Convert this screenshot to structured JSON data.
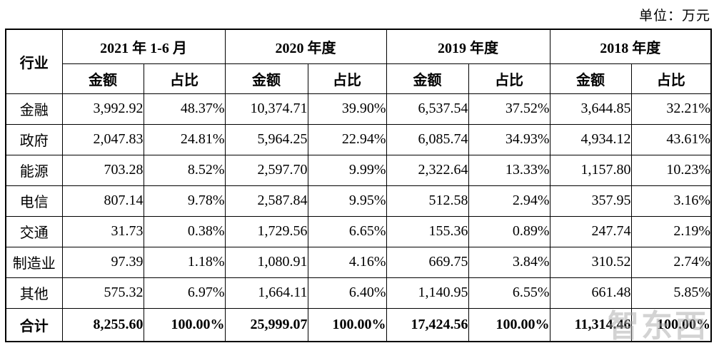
{
  "page": {
    "unit_label": "单位：万元",
    "watermark": "智东西"
  },
  "colors": {
    "background": "#ffffff",
    "text": "#000000",
    "border": "#000000",
    "watermark": "#a9a9a9"
  },
  "table": {
    "corner_header": "行业",
    "period_headers": [
      "2021 年 1-6 月",
      "2020 年度",
      "2019 年度",
      "2018 年度"
    ],
    "sub_headers": {
      "amount": "金额",
      "ratio": "占比"
    },
    "rows": [
      {
        "industry": "金融",
        "cells": [
          "3,992.92",
          "48.37%",
          "10,374.71",
          "39.90%",
          "6,537.54",
          "37.52%",
          "3,644.85",
          "32.21%"
        ]
      },
      {
        "industry": "政府",
        "cells": [
          "2,047.83",
          "24.81%",
          "5,964.25",
          "22.94%",
          "6,085.74",
          "34.93%",
          "4,934.12",
          "43.61%"
        ]
      },
      {
        "industry": "能源",
        "cells": [
          "703.28",
          "8.52%",
          "2,597.70",
          "9.99%",
          "2,322.64",
          "13.33%",
          "1,157.80",
          "10.23%"
        ]
      },
      {
        "industry": "电信",
        "cells": [
          "807.14",
          "9.78%",
          "2,587.84",
          "9.95%",
          "512.58",
          "2.94%",
          "357.95",
          "3.16%"
        ]
      },
      {
        "industry": "交通",
        "cells": [
          "31.73",
          "0.38%",
          "1,729.56",
          "6.65%",
          "155.36",
          "0.89%",
          "247.74",
          "2.19%"
        ]
      },
      {
        "industry": "制造业",
        "cells": [
          "97.39",
          "1.18%",
          "1,080.91",
          "4.16%",
          "669.75",
          "3.84%",
          "310.52",
          "2.74%"
        ]
      },
      {
        "industry": "其他",
        "cells": [
          "575.32",
          "6.97%",
          "1,664.11",
          "6.40%",
          "1,140.95",
          "6.55%",
          "661.48",
          "5.85%"
        ]
      }
    ],
    "total_row": {
      "industry": "合计",
      "cells": [
        "8,255.60",
        "100.00%",
        "25,999.07",
        "100.00%",
        "17,424.56",
        "100.00%",
        "11,314.46",
        "100.00%"
      ]
    }
  }
}
